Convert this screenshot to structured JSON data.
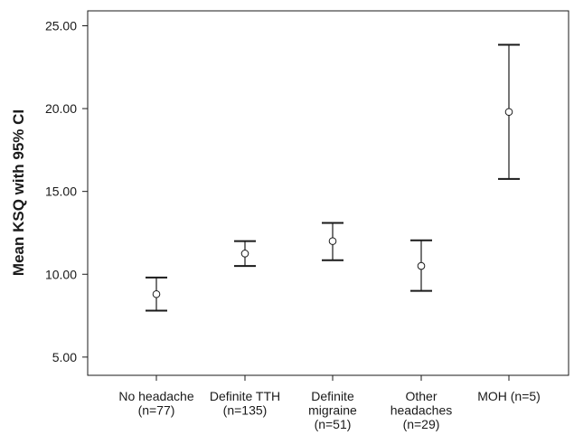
{
  "chart_data": {
    "type": "errorbar",
    "ylabel": "Mean KSQ with 95% CI",
    "xlabel": "",
    "ylim": [
      3.9,
      25.9
    ],
    "yticks": [
      "5.00",
      "10.00",
      "15.00",
      "20.00",
      "25.00"
    ],
    "grid": false,
    "categories": [
      {
        "lines": [
          "No headache",
          "(n=77)"
        ],
        "mean": 8.8,
        "lower": 7.8,
        "upper": 9.8
      },
      {
        "lines": [
          "Definite TTH",
          "(n=135)"
        ],
        "mean": 11.25,
        "lower": 10.5,
        "upper": 12.0
      },
      {
        "lines": [
          "Definite",
          "migraine",
          "(n=51)"
        ],
        "mean": 12.0,
        "lower": 10.85,
        "upper": 13.1
      },
      {
        "lines": [
          "Other",
          "headaches",
          "(n=29)"
        ],
        "mean": 10.5,
        "lower": 9.0,
        "upper": 12.05
      },
      {
        "lines": [
          "MOH (n=5)"
        ],
        "mean": 19.8,
        "lower": 15.75,
        "upper": 23.85
      }
    ]
  }
}
